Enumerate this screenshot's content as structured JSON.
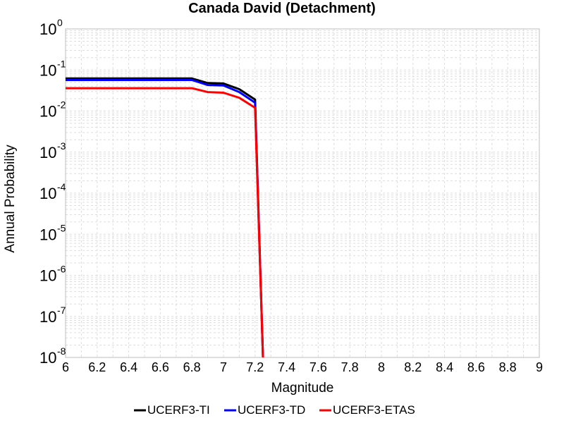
{
  "chart_data": {
    "type": "line",
    "title": "Canada David (Detachment)",
    "xlabel": "Magnitude",
    "ylabel": "Annual Probability",
    "xlim": [
      6,
      9
    ],
    "ylim": [
      1e-08,
      1
    ],
    "y_scale": "log",
    "grid": true,
    "legend_position": "bottom",
    "x_ticks": [
      "6",
      "6.2",
      "6.4",
      "6.6",
      "6.8",
      "7",
      "7.2",
      "7.4",
      "7.6",
      "7.8",
      "8",
      "8.2",
      "8.4",
      "8.6",
      "8.8",
      "9"
    ],
    "y_ticks": [
      {
        "base": "10",
        "exp": "0"
      },
      {
        "base": "10",
        "exp": "-1"
      },
      {
        "base": "10",
        "exp": "-2"
      },
      {
        "base": "10",
        "exp": "-3"
      },
      {
        "base": "10",
        "exp": "-4"
      },
      {
        "base": "10",
        "exp": "-5"
      },
      {
        "base": "10",
        "exp": "-6"
      },
      {
        "base": "10",
        "exp": "-7"
      },
      {
        "base": "10",
        "exp": "-8"
      }
    ],
    "series": [
      {
        "name": "UCERF3-TI",
        "color": "#000000",
        "x": [
          6.0,
          6.1,
          6.2,
          6.3,
          6.4,
          6.5,
          6.6,
          6.7,
          6.8,
          6.9,
          7.0,
          7.1,
          7.2,
          7.25
        ],
        "y": [
          0.062,
          0.062,
          0.062,
          0.062,
          0.062,
          0.062,
          0.062,
          0.062,
          0.062,
          0.048,
          0.047,
          0.034,
          0.019,
          1e-08
        ]
      },
      {
        "name": "UCERF3-TD",
        "color": "#0000ff",
        "x": [
          6.0,
          6.1,
          6.2,
          6.3,
          6.4,
          6.5,
          6.6,
          6.7,
          6.8,
          6.9,
          7.0,
          7.1,
          7.2,
          7.25
        ],
        "y": [
          0.057,
          0.057,
          0.057,
          0.057,
          0.057,
          0.057,
          0.057,
          0.057,
          0.057,
          0.043,
          0.042,
          0.029,
          0.016,
          1e-08
        ]
      },
      {
        "name": "UCERF3-ETAS",
        "color": "#ff0000",
        "x": [
          6.0,
          6.1,
          6.2,
          6.3,
          6.4,
          6.5,
          6.6,
          6.7,
          6.8,
          6.9,
          7.0,
          7.1,
          7.2,
          7.25
        ],
        "y": [
          0.036,
          0.036,
          0.036,
          0.036,
          0.036,
          0.036,
          0.036,
          0.036,
          0.036,
          0.029,
          0.028,
          0.021,
          0.012,
          1e-08
        ]
      }
    ]
  }
}
